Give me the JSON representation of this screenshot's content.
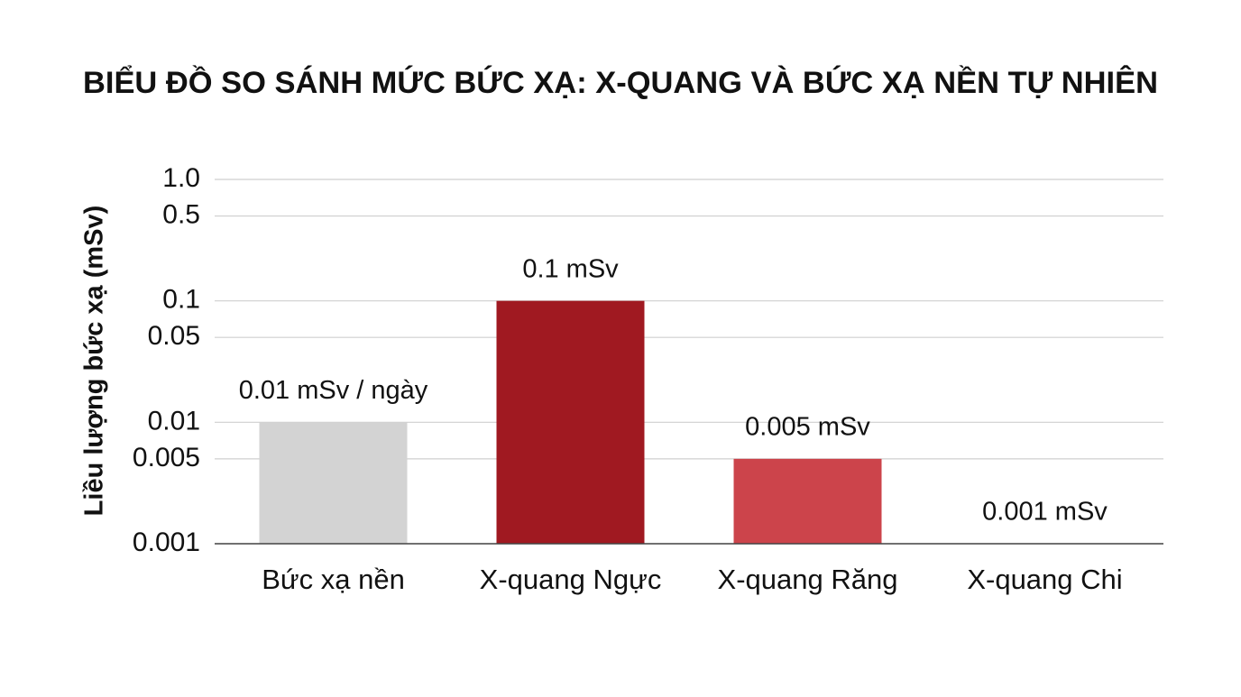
{
  "chart_data": {
    "type": "bar",
    "title": "BIỂU ĐỒ SO SÁNH MỨC BỨC XẠ: X-QUANG VÀ BỨC XẠ NỀN TỰ NHIÊN",
    "y_label": "Liều lượng bức xạ (mSv)",
    "categories": [
      "Bức xạ nền",
      "X-quang Ngực",
      "X-quang Răng",
      "X-quang Chi"
    ],
    "values": [
      0.01,
      0.1,
      0.005,
      0.001
    ],
    "value_labels": [
      "0.01 mSv / ngày",
      "0.1 mSv",
      "0.005 mSv",
      "0.001 mSv"
    ],
    "colors": [
      "#d3d3d3",
      "#a01921",
      "#cc444b",
      "#eb7b82"
    ],
    "log": true,
    "ylim": [
      0.001,
      1
    ],
    "yticks": [
      {
        "value": 1,
        "label": "1.0"
      },
      0.5,
      0.1,
      0.05,
      0.01,
      0.005,
      0.001
    ],
    "grid": true
  }
}
